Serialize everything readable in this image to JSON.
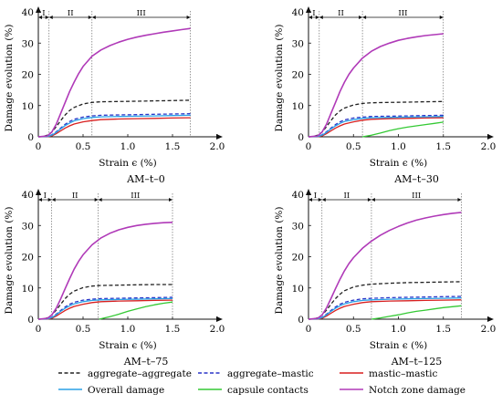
{
  "chart_data": [
    {
      "type": "line",
      "title": "AM–t–0",
      "xlabel": "Strain ϵ (%)",
      "ylabel": "Damage evolution (%)",
      "xlim": [
        0,
        2.0
      ],
      "ylim": [
        0,
        40
      ],
      "xticks": [
        "0",
        "0.5",
        "1.0",
        "1.5",
        "2.0"
      ],
      "yticks": [
        "0",
        "10",
        "20",
        "30",
        "40"
      ],
      "phases": [
        {
          "label": "I",
          "from": 0,
          "to": 0.12
        },
        {
          "label": "II",
          "from": 0.12,
          "to": 0.6
        },
        {
          "label": "III",
          "from": 0.6,
          "to": 1.7
        }
      ],
      "series": [
        {
          "name": "aggregate–aggregate",
          "x": [
            0,
            0.05,
            0.1,
            0.15,
            0.2,
            0.25,
            0.3,
            0.35,
            0.4,
            0.5,
            0.6,
            0.7,
            0.9,
            1.1,
            1.3,
            1.5,
            1.7
          ],
          "y": [
            0,
            0.1,
            0.5,
            1.5,
            3.2,
            5.2,
            7.0,
            8.4,
            9.4,
            10.5,
            11.0,
            11.2,
            11.3,
            11.4,
            11.5,
            11.6,
            11.7
          ]
        },
        {
          "name": "aggregate–mastic",
          "x": [
            0,
            0.1,
            0.15,
            0.2,
            0.25,
            0.3,
            0.35,
            0.4,
            0.5,
            0.6,
            0.7,
            0.9,
            1.1,
            1.3,
            1.5,
            1.7
          ],
          "y": [
            0,
            0.1,
            0.6,
            1.6,
            2.8,
            4.0,
            4.9,
            5.6,
            6.3,
            6.7,
            6.9,
            7.0,
            7.1,
            7.2,
            7.3,
            7.4
          ]
        },
        {
          "name": "mastic–mastic",
          "x": [
            0,
            0.1,
            0.15,
            0.2,
            0.25,
            0.3,
            0.35,
            0.4,
            0.5,
            0.6,
            0.7,
            0.9,
            1.1,
            1.3,
            1.5,
            1.7
          ],
          "y": [
            0,
            0.0,
            0.3,
            1.0,
            1.9,
            2.8,
            3.5,
            4.1,
            4.8,
            5.2,
            5.5,
            5.7,
            5.8,
            5.9,
            6.0,
            6.1
          ]
        },
        {
          "name": "Overall damage",
          "x": [
            0,
            0.1,
            0.15,
            0.2,
            0.25,
            0.3,
            0.35,
            0.4,
            0.5,
            0.6,
            0.7,
            0.9,
            1.1,
            1.3,
            1.5,
            1.7
          ],
          "y": [
            0,
            0.1,
            0.5,
            1.4,
            2.5,
            3.6,
            4.4,
            5.1,
            5.8,
            6.2,
            6.4,
            6.5,
            6.6,
            6.7,
            6.8,
            6.9
          ]
        },
        {
          "name": "Notch zone damage",
          "x": [
            0,
            0.1,
            0.15,
            0.2,
            0.25,
            0.3,
            0.35,
            0.4,
            0.45,
            0.5,
            0.6,
            0.7,
            0.8,
            0.9,
            1.0,
            1.1,
            1.2,
            1.3,
            1.4,
            1.5,
            1.6,
            1.7
          ],
          "y": [
            0,
            0.3,
            1.5,
            4.0,
            7.5,
            11.0,
            14.5,
            17.5,
            20.2,
            22.5,
            25.8,
            27.8,
            29.2,
            30.3,
            31.2,
            31.9,
            32.5,
            33.0,
            33.5,
            33.9,
            34.3,
            34.7
          ]
        }
      ]
    },
    {
      "type": "line",
      "title": "AM–t–30",
      "xlabel": "Strain ϵ (%)",
      "ylabel": "Damage evolution (%)",
      "xlim": [
        0,
        2.0
      ],
      "ylim": [
        0,
        40
      ],
      "xticks": [
        "0",
        "0.5",
        "1.0",
        "1.5",
        "2.0"
      ],
      "yticks": [
        "0",
        "10",
        "20",
        "30",
        "40"
      ],
      "phases": [
        {
          "label": "I",
          "from": 0,
          "to": 0.12
        },
        {
          "label": "II",
          "from": 0.12,
          "to": 0.6
        },
        {
          "label": "III",
          "from": 0.6,
          "to": 1.5
        }
      ],
      "series": [
        {
          "name": "aggregate–aggregate",
          "x": [
            0,
            0.05,
            0.1,
            0.15,
            0.2,
            0.25,
            0.3,
            0.35,
            0.4,
            0.5,
            0.6,
            0.7,
            0.9,
            1.1,
            1.3,
            1.5
          ],
          "y": [
            0,
            0.1,
            0.5,
            1.5,
            3.2,
            5.2,
            7.0,
            8.3,
            9.2,
            10.2,
            10.7,
            10.9,
            11.0,
            11.1,
            11.2,
            11.3
          ]
        },
        {
          "name": "aggregate–mastic",
          "x": [
            0,
            0.1,
            0.15,
            0.2,
            0.25,
            0.3,
            0.35,
            0.4,
            0.5,
            0.6,
            0.7,
            0.9,
            1.1,
            1.3,
            1.5
          ],
          "y": [
            0,
            0.1,
            0.6,
            1.6,
            2.8,
            3.9,
            4.8,
            5.4,
            6.0,
            6.3,
            6.5,
            6.6,
            6.7,
            6.8,
            6.9
          ]
        },
        {
          "name": "mastic–mastic",
          "x": [
            0,
            0.1,
            0.15,
            0.2,
            0.25,
            0.3,
            0.35,
            0.4,
            0.5,
            0.6,
            0.7,
            0.9,
            1.1,
            1.3,
            1.5
          ],
          "y": [
            0,
            0.0,
            0.3,
            1.0,
            1.9,
            2.8,
            3.5,
            4.1,
            4.8,
            5.3,
            5.6,
            5.8,
            5.9,
            6.0,
            6.1
          ]
        },
        {
          "name": "Overall damage",
          "x": [
            0,
            0.1,
            0.15,
            0.2,
            0.25,
            0.3,
            0.35,
            0.4,
            0.5,
            0.6,
            0.7,
            0.9,
            1.1,
            1.3,
            1.5
          ],
          "y": [
            0,
            0.1,
            0.5,
            1.4,
            2.5,
            3.5,
            4.3,
            4.9,
            5.5,
            5.9,
            6.1,
            6.2,
            6.3,
            6.4,
            6.5
          ]
        },
        {
          "name": "capsule contacts",
          "x": [
            0.6,
            0.7,
            0.8,
            0.9,
            1.0,
            1.1,
            1.2,
            1.3,
            1.4,
            1.5
          ],
          "y": [
            0,
            0.5,
            1.2,
            2.0,
            2.6,
            3.1,
            3.5,
            3.9,
            4.3,
            4.7
          ]
        },
        {
          "name": "Notch zone damage",
          "x": [
            0,
            0.1,
            0.15,
            0.2,
            0.25,
            0.3,
            0.35,
            0.4,
            0.45,
            0.5,
            0.6,
            0.7,
            0.8,
            0.9,
            1.0,
            1.1,
            1.2,
            1.3,
            1.4,
            1.5
          ],
          "y": [
            0,
            0.3,
            1.5,
            4.0,
            7.5,
            11.0,
            14.5,
            17.5,
            20.0,
            22.0,
            25.2,
            27.4,
            28.9,
            30.0,
            30.9,
            31.5,
            32.0,
            32.4,
            32.7,
            33.0
          ]
        }
      ]
    },
    {
      "type": "line",
      "title": "AM–t–75",
      "xlabel": "Strain ϵ (%)",
      "ylabel": "Damage evolution (%)",
      "xlim": [
        0,
        2.0
      ],
      "ylim": [
        0,
        40
      ],
      "xticks": [
        "0",
        "0.5",
        "1.0",
        "1.5",
        "2.0"
      ],
      "yticks": [
        "0",
        "10",
        "20",
        "30",
        "40"
      ],
      "phases": [
        {
          "label": "I",
          "from": 0,
          "to": 0.15
        },
        {
          "label": "II",
          "from": 0.15,
          "to": 0.67
        },
        {
          "label": "III",
          "from": 0.67,
          "to": 1.5
        }
      ],
      "series": [
        {
          "name": "aggregate–aggregate",
          "x": [
            0,
            0.05,
            0.1,
            0.15,
            0.2,
            0.25,
            0.3,
            0.35,
            0.4,
            0.5,
            0.6,
            0.7,
            0.9,
            1.1,
            1.3,
            1.5
          ],
          "y": [
            0,
            0.1,
            0.4,
            1.3,
            2.9,
            4.8,
            6.6,
            8.0,
            9.0,
            10.1,
            10.6,
            10.8,
            10.9,
            11.0,
            11.1,
            11.1
          ]
        },
        {
          "name": "aggregate–mastic",
          "x": [
            0,
            0.1,
            0.15,
            0.2,
            0.25,
            0.3,
            0.35,
            0.4,
            0.5,
            0.6,
            0.7,
            0.9,
            1.1,
            1.3,
            1.5
          ],
          "y": [
            0,
            0.1,
            0.6,
            1.6,
            2.8,
            3.9,
            4.8,
            5.4,
            6.1,
            6.4,
            6.6,
            6.7,
            6.8,
            6.9,
            7.0
          ]
        },
        {
          "name": "mastic–mastic",
          "x": [
            0,
            0.1,
            0.15,
            0.2,
            0.25,
            0.3,
            0.35,
            0.4,
            0.5,
            0.6,
            0.7,
            0.9,
            1.1,
            1.3,
            1.5
          ],
          "y": [
            0,
            0.0,
            0.3,
            1.0,
            1.9,
            2.8,
            3.5,
            4.1,
            4.8,
            5.3,
            5.6,
            5.8,
            5.9,
            6.0,
            6.1
          ]
        },
        {
          "name": "Overall damage",
          "x": [
            0,
            0.1,
            0.15,
            0.2,
            0.25,
            0.3,
            0.35,
            0.4,
            0.5,
            0.6,
            0.7,
            0.9,
            1.1,
            1.3,
            1.5
          ],
          "y": [
            0,
            0.1,
            0.5,
            1.4,
            2.5,
            3.5,
            4.3,
            4.9,
            5.6,
            6.0,
            6.2,
            6.3,
            6.4,
            6.5,
            6.6
          ]
        },
        {
          "name": "capsule contacts",
          "x": [
            0.68,
            0.8,
            0.9,
            1.0,
            1.1,
            1.2,
            1.3,
            1.4,
            1.5
          ],
          "y": [
            0,
            0.8,
            1.6,
            2.5,
            3.3,
            4.0,
            4.6,
            5.1,
            5.5
          ]
        },
        {
          "name": "Notch zone damage",
          "x": [
            0,
            0.1,
            0.15,
            0.2,
            0.25,
            0.3,
            0.35,
            0.4,
            0.45,
            0.5,
            0.6,
            0.7,
            0.8,
            0.9,
            1.0,
            1.1,
            1.2,
            1.3,
            1.4,
            1.5
          ],
          "y": [
            0,
            0.3,
            1.3,
            3.5,
            6.5,
            9.8,
            13.0,
            16.0,
            18.5,
            20.6,
            23.8,
            26.0,
            27.5,
            28.6,
            29.4,
            30.0,
            30.4,
            30.7,
            30.9,
            31.0
          ]
        }
      ]
    },
    {
      "type": "line",
      "title": "AM–t–125",
      "xlabel": "Strain ϵ (%)",
      "ylabel": "Damage evolution (%)",
      "xlim": [
        0,
        2.0
      ],
      "ylim": [
        0,
        40
      ],
      "xticks": [
        "0",
        "0.5",
        "1.0",
        "1.5",
        "2.0"
      ],
      "yticks": [
        "0",
        "10",
        "20",
        "30",
        "40"
      ],
      "phases": [
        {
          "label": "I",
          "from": 0,
          "to": 0.15
        },
        {
          "label": "II",
          "from": 0.15,
          "to": 0.7
        },
        {
          "label": "III",
          "from": 0.7,
          "to": 1.7
        }
      ],
      "series": [
        {
          "name": "aggregate–aggregate",
          "x": [
            0,
            0.05,
            0.1,
            0.15,
            0.2,
            0.25,
            0.3,
            0.35,
            0.4,
            0.5,
            0.6,
            0.7,
            0.9,
            1.1,
            1.3,
            1.5,
            1.7
          ],
          "y": [
            0,
            0.1,
            0.4,
            1.3,
            2.9,
            4.8,
            6.6,
            8.0,
            9.1,
            10.3,
            10.9,
            11.2,
            11.5,
            11.7,
            11.8,
            11.9,
            12.0
          ]
        },
        {
          "name": "aggregate–mastic",
          "x": [
            0,
            0.1,
            0.15,
            0.2,
            0.25,
            0.3,
            0.35,
            0.4,
            0.5,
            0.6,
            0.7,
            0.9,
            1.1,
            1.3,
            1.5,
            1.7
          ],
          "y": [
            0,
            0.1,
            0.6,
            1.6,
            2.8,
            3.9,
            4.8,
            5.4,
            6.1,
            6.5,
            6.7,
            6.9,
            7.0,
            7.1,
            7.2,
            7.3
          ]
        },
        {
          "name": "mastic–mastic",
          "x": [
            0,
            0.1,
            0.15,
            0.2,
            0.25,
            0.3,
            0.35,
            0.4,
            0.5,
            0.6,
            0.7,
            0.9,
            1.1,
            1.3,
            1.5,
            1.7
          ],
          "y": [
            0,
            0.0,
            0.3,
            1.0,
            1.9,
            2.8,
            3.5,
            4.1,
            4.8,
            5.3,
            5.6,
            5.8,
            5.9,
            6.0,
            6.1,
            6.2
          ]
        },
        {
          "name": "Overall damage",
          "x": [
            0,
            0.1,
            0.15,
            0.2,
            0.25,
            0.3,
            0.35,
            0.4,
            0.5,
            0.6,
            0.7,
            0.9,
            1.1,
            1.3,
            1.5,
            1.7
          ],
          "y": [
            0,
            0.1,
            0.5,
            1.4,
            2.5,
            3.5,
            4.3,
            4.9,
            5.6,
            6.0,
            6.2,
            6.4,
            6.5,
            6.6,
            6.7,
            6.8
          ]
        },
        {
          "name": "capsule contacts",
          "x": [
            0.7,
            0.8,
            0.9,
            1.0,
            1.1,
            1.2,
            1.3,
            1.4,
            1.5,
            1.6,
            1.7
          ],
          "y": [
            0,
            0.4,
            0.9,
            1.4,
            2.0,
            2.5,
            2.9,
            3.3,
            3.7,
            4.0,
            4.3
          ]
        },
        {
          "name": "Notch zone damage",
          "x": [
            0,
            0.1,
            0.15,
            0.2,
            0.25,
            0.3,
            0.35,
            0.4,
            0.45,
            0.5,
            0.6,
            0.7,
            0.8,
            0.9,
            1.0,
            1.1,
            1.2,
            1.3,
            1.4,
            1.5,
            1.6,
            1.7
          ],
          "y": [
            0,
            0.3,
            1.3,
            3.6,
            6.6,
            9.8,
            12.8,
            15.5,
            17.8,
            19.7,
            22.7,
            25.0,
            26.9,
            28.4,
            29.7,
            30.8,
            31.7,
            32.4,
            33.0,
            33.5,
            33.9,
            34.2
          ]
        }
      ]
    }
  ],
  "legend": {
    "items": [
      {
        "name": "aggregate–aggregate",
        "color": "#222222",
        "dash": "dashed"
      },
      {
        "name": "aggregate–mastic",
        "color": "#2a35c8",
        "dash": "dashed"
      },
      {
        "name": "mastic–mastic",
        "color": "#d81f1f",
        "dash": "solid"
      },
      {
        "name": "Overall damage",
        "color": "#2aa0e6",
        "dash": "solid"
      },
      {
        "name": "capsule contacts",
        "color": "#34c934",
        "dash": "solid"
      },
      {
        "name": "Notch zone damage",
        "color": "#b03ab8",
        "dash": "solid"
      }
    ]
  },
  "colors": {
    "aggregate–aggregate": "#222222",
    "aggregate–mastic": "#2a35c8",
    "mastic–mastic": "#d81f1f",
    "Overall damage": "#2aa0e6",
    "capsule contacts": "#34c934",
    "Notch zone damage": "#b03ab8"
  }
}
